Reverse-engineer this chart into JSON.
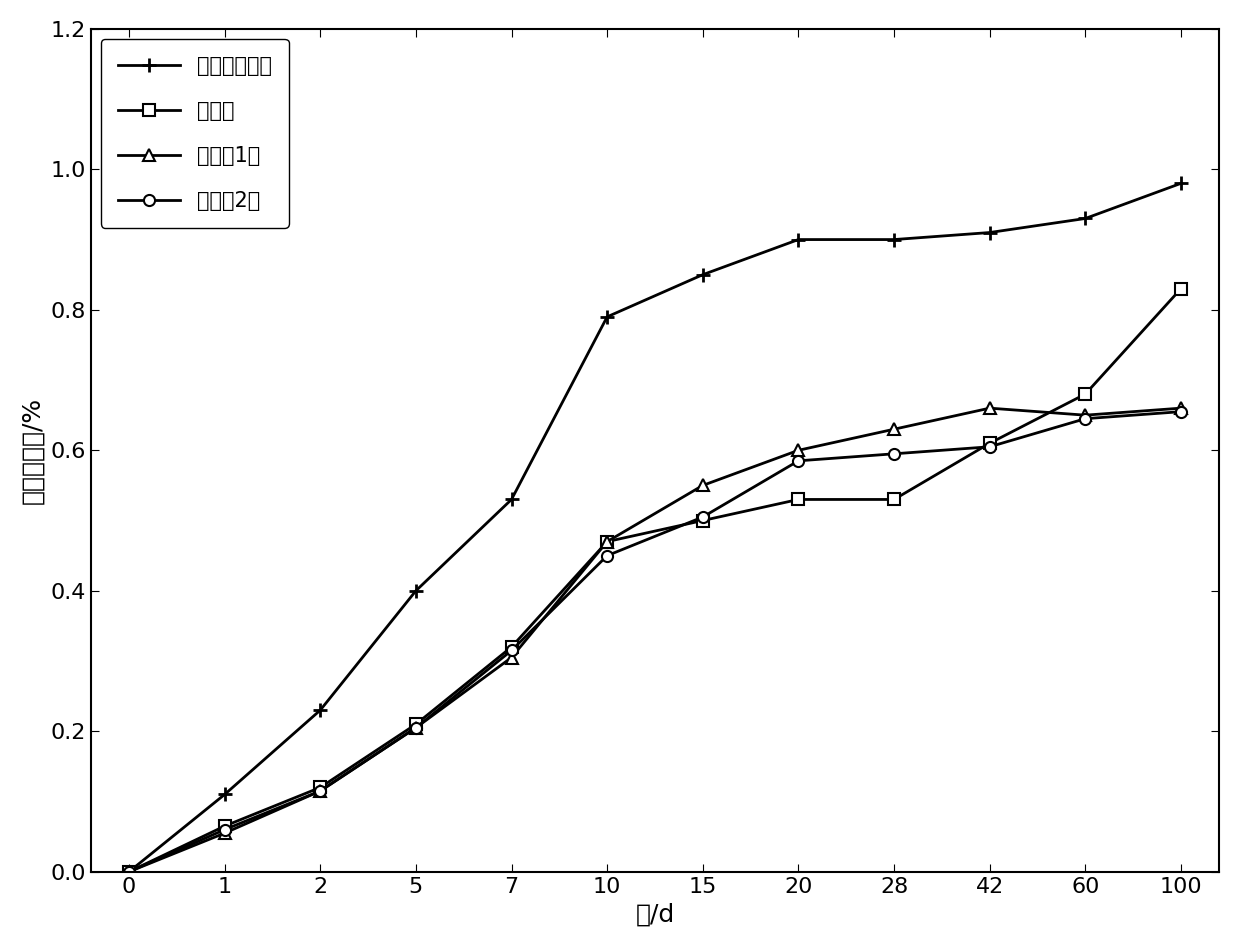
{
  "x_indices": [
    0,
    1,
    2,
    3,
    4,
    5,
    6,
    7,
    8,
    9,
    10,
    11
  ],
  "x_labels": [
    "0",
    "1",
    "2",
    "5",
    "7",
    "10",
    "15",
    "20",
    "28",
    "42",
    "60",
    "100"
  ],
  "series": [
    {
      "label": "普通大粒尿素",
      "y": [
        0,
        0.11,
        0.23,
        0.4,
        0.53,
        0.79,
        0.85,
        0.9,
        0.9,
        0.91,
        0.93,
        0.98
      ],
      "marker": "+",
      "markersize": 10,
      "linewidth": 2.0,
      "color": "#000000",
      "mfc": "none",
      "markeredgewidth": 2.0
    },
    {
      "label": "脲甲醒",
      "y": [
        0,
        0.065,
        0.12,
        0.21,
        0.32,
        0.47,
        0.5,
        0.53,
        0.53,
        0.61,
        0.68,
        0.83
      ],
      "marker": "s",
      "markersize": 8,
      "linewidth": 2.0,
      "color": "#000000",
      "mfc": "white",
      "markeredgewidth": 1.5
    },
    {
      "label": "实施例1肥",
      "y": [
        0,
        0.055,
        0.115,
        0.205,
        0.305,
        0.47,
        0.55,
        0.6,
        0.63,
        0.66,
        0.65,
        0.66
      ],
      "marker": "^",
      "markersize": 8,
      "linewidth": 2.0,
      "color": "#000000",
      "mfc": "white",
      "markeredgewidth": 1.5
    },
    {
      "label": "实施例2肥",
      "y": [
        0,
        0.06,
        0.115,
        0.205,
        0.315,
        0.45,
        0.505,
        0.585,
        0.595,
        0.605,
        0.645,
        0.655
      ],
      "marker": "o",
      "markersize": 8,
      "linewidth": 2.0,
      "color": "#000000",
      "mfc": "white",
      "markeredgewidth": 1.5
    }
  ],
  "xlabel": "天/d",
  "ylabel": "累积解放率/%",
  "ylim": [
    0,
    1.2
  ],
  "yticks": [
    0,
    0.2,
    0.4,
    0.6,
    0.8,
    1.0,
    1.2
  ],
  "legend_loc": "upper left",
  "background_color": "#ffffff",
  "label_fontsize": 18,
  "tick_fontsize": 16,
  "legend_fontsize": 15
}
